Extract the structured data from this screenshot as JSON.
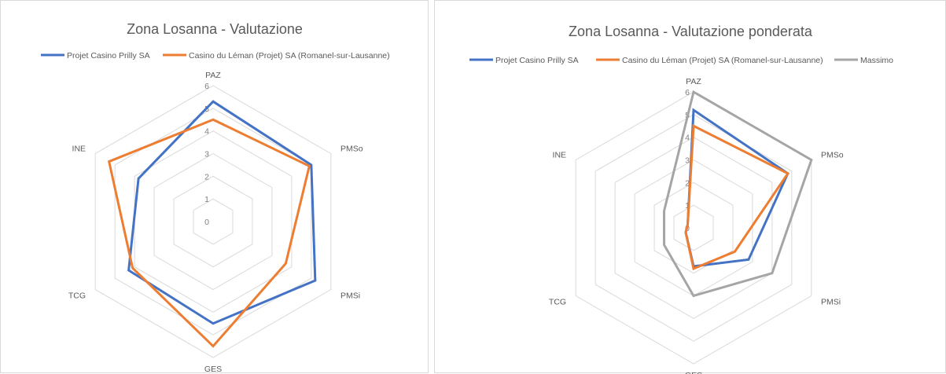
{
  "chart_data": [
    {
      "type": "radar",
      "title": "Zona Losanna - Valutazione",
      "axes": [
        "PAZ",
        "PMSo",
        "PMSi",
        "GES",
        "TCG",
        "INE"
      ],
      "rlim": [
        0,
        6
      ],
      "ticks": [
        "0",
        "1",
        "2",
        "3",
        "4",
        "5",
        "6"
      ],
      "grid": true,
      "legend": "top",
      "series": [
        {
          "name": "Projet Casino Prilly SA",
          "color": "#4472c4",
          "values": [
            5.3,
            5.0,
            5.2,
            4.5,
            4.3,
            3.8
          ]
        },
        {
          "name": "Casino du Léman (Projet) SA (Romanel-sur-Lausanne)",
          "color": "#ed7d31",
          "values": [
            4.5,
            4.9,
            3.7,
            5.5,
            4.1,
            5.3
          ]
        }
      ]
    },
    {
      "type": "radar",
      "title": "Zona Losanna - Valutazione ponderata",
      "axes": [
        "PAZ",
        "PMSo",
        "PMSi",
        "GES",
        "TCG",
        "INE"
      ],
      "rlim": [
        0,
        6
      ],
      "ticks": [
        "0",
        "1",
        "2",
        "3",
        "4",
        "5",
        "6"
      ],
      "grid": true,
      "legend": "top",
      "series": [
        {
          "name": "Projet Casino Prilly SA",
          "color": "#4472c4",
          "values": [
            5.2,
            4.8,
            2.8,
            1.7,
            0.4,
            0.3
          ]
        },
        {
          "name": "Casino du Léman (Projet) SA (Romanel-sur-Lausanne)",
          "color": "#ed7d31",
          "values": [
            4.5,
            4.8,
            2.1,
            1.8,
            0.4,
            0.3
          ]
        },
        {
          "name": "Massimo",
          "color": "#a5a5a5",
          "values": [
            6.0,
            6.0,
            4.0,
            3.0,
            1.5,
            1.5
          ]
        }
      ]
    }
  ]
}
